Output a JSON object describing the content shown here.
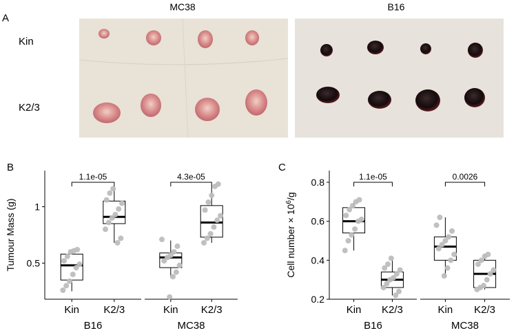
{
  "panel_a": {
    "label": "A",
    "titles": [
      "MC38",
      "B16"
    ],
    "row_labels": [
      "Kin",
      "K2/3"
    ]
  },
  "chart_data": [
    {
      "panel": "B",
      "type": "box",
      "ylabel": "Tumour Mass (g)",
      "ylim": [
        0.18,
        1.32
      ],
      "yticks": [
        0.5,
        1
      ],
      "ytick_labels": [
        "0.5",
        "1"
      ],
      "groups": [
        {
          "name": "B16",
          "pvalue": "1.1e-05",
          "boxes": [
            {
              "category": "Kin",
              "q1": 0.35,
              "median": 0.48,
              "q3": 0.58,
              "whisker_low": 0.25,
              "whisker_high": 0.62,
              "points": [
                0.26,
                0.3,
                0.34,
                0.4,
                0.46,
                0.49,
                0.52,
                0.56,
                0.6,
                0.61,
                0.62
              ]
            },
            {
              "category": "K2/3",
              "q1": 0.85,
              "median": 0.91,
              "q3": 1.05,
              "whisker_low": 0.68,
              "whisker_high": 1.16,
              "points": [
                0.68,
                0.72,
                0.8,
                0.86,
                0.9,
                0.93,
                0.98,
                1.03,
                1.06,
                1.12,
                1.16
              ]
            }
          ]
        },
        {
          "name": "MC38",
          "pvalue": "4.3e-05",
          "boxes": [
            {
              "category": "Kin",
              "q1": 0.46,
              "median": 0.55,
              "q3": 0.59,
              "whisker_low": 0.37,
              "whisker_high": 0.7,
              "points": [
                0.2,
                0.38,
                0.42,
                0.48,
                0.52,
                0.55,
                0.57,
                0.6,
                0.65,
                0.71
              ]
            },
            {
              "category": "K2/3",
              "q1": 0.73,
              "median": 0.86,
              "q3": 1.01,
              "whisker_low": 0.68,
              "whisker_high": 1.18,
              "points": [
                0.68,
                0.72,
                0.76,
                0.82,
                0.88,
                0.92,
                0.97,
                1.04,
                1.1,
                1.18,
                1.2
              ]
            }
          ]
        }
      ],
      "groups_axis": [
        "B16",
        "MC38"
      ]
    },
    {
      "panel": "C",
      "type": "box",
      "ylabel": "Cell number × 10⁶/g",
      "ylim": [
        0.2,
        0.86
      ],
      "yticks": [
        0.2,
        0.4,
        0.6,
        0.8
      ],
      "ytick_labels": [
        "0.2",
        "0.4",
        "0.6",
        "0.8"
      ],
      "groups": [
        {
          "name": "B16",
          "pvalue": "1.1e-05",
          "boxes": [
            {
              "category": "Kin",
              "q1": 0.54,
              "median": 0.6,
              "q3": 0.67,
              "whisker_low": 0.45,
              "whisker_high": 0.7,
              "points": [
                0.45,
                0.5,
                0.53,
                0.56,
                0.6,
                0.61,
                0.63,
                0.66,
                0.68,
                0.7,
                0.71
              ]
            },
            {
              "category": "K2/3",
              "q1": 0.26,
              "median": 0.3,
              "q3": 0.34,
              "whisker_low": 0.22,
              "whisker_high": 0.41,
              "points": [
                0.22,
                0.24,
                0.26,
                0.28,
                0.3,
                0.31,
                0.33,
                0.35,
                0.36,
                0.38,
                0.41
              ]
            }
          ]
        },
        {
          "name": "MC38",
          "pvalue": "0.0026",
          "boxes": [
            {
              "category": "Kin",
              "q1": 0.4,
              "median": 0.47,
              "q3": 0.52,
              "whisker_low": 0.32,
              "whisker_high": 0.62,
              "points": [
                0.32,
                0.36,
                0.4,
                0.43,
                0.46,
                0.48,
                0.5,
                0.52,
                0.55,
                0.58,
                0.62
              ]
            },
            {
              "category": "K2/3",
              "q1": 0.26,
              "median": 0.33,
              "q3": 0.4,
              "whisker_low": 0.25,
              "whisker_high": 0.43,
              "points": [
                0.25,
                0.26,
                0.27,
                0.3,
                0.33,
                0.35,
                0.38,
                0.4,
                0.42,
                0.43
              ]
            }
          ]
        }
      ],
      "groups_axis": [
        "B16",
        "MC38"
      ]
    }
  ],
  "colors": {
    "point": "#bdbdbd",
    "box_stroke": "#000000",
    "paper_left": "#e9e2d6",
    "paper_right": "#e7e3dc",
    "tumour_mc38": "#d9908f",
    "tumour_b16": "#1a0d0f"
  }
}
